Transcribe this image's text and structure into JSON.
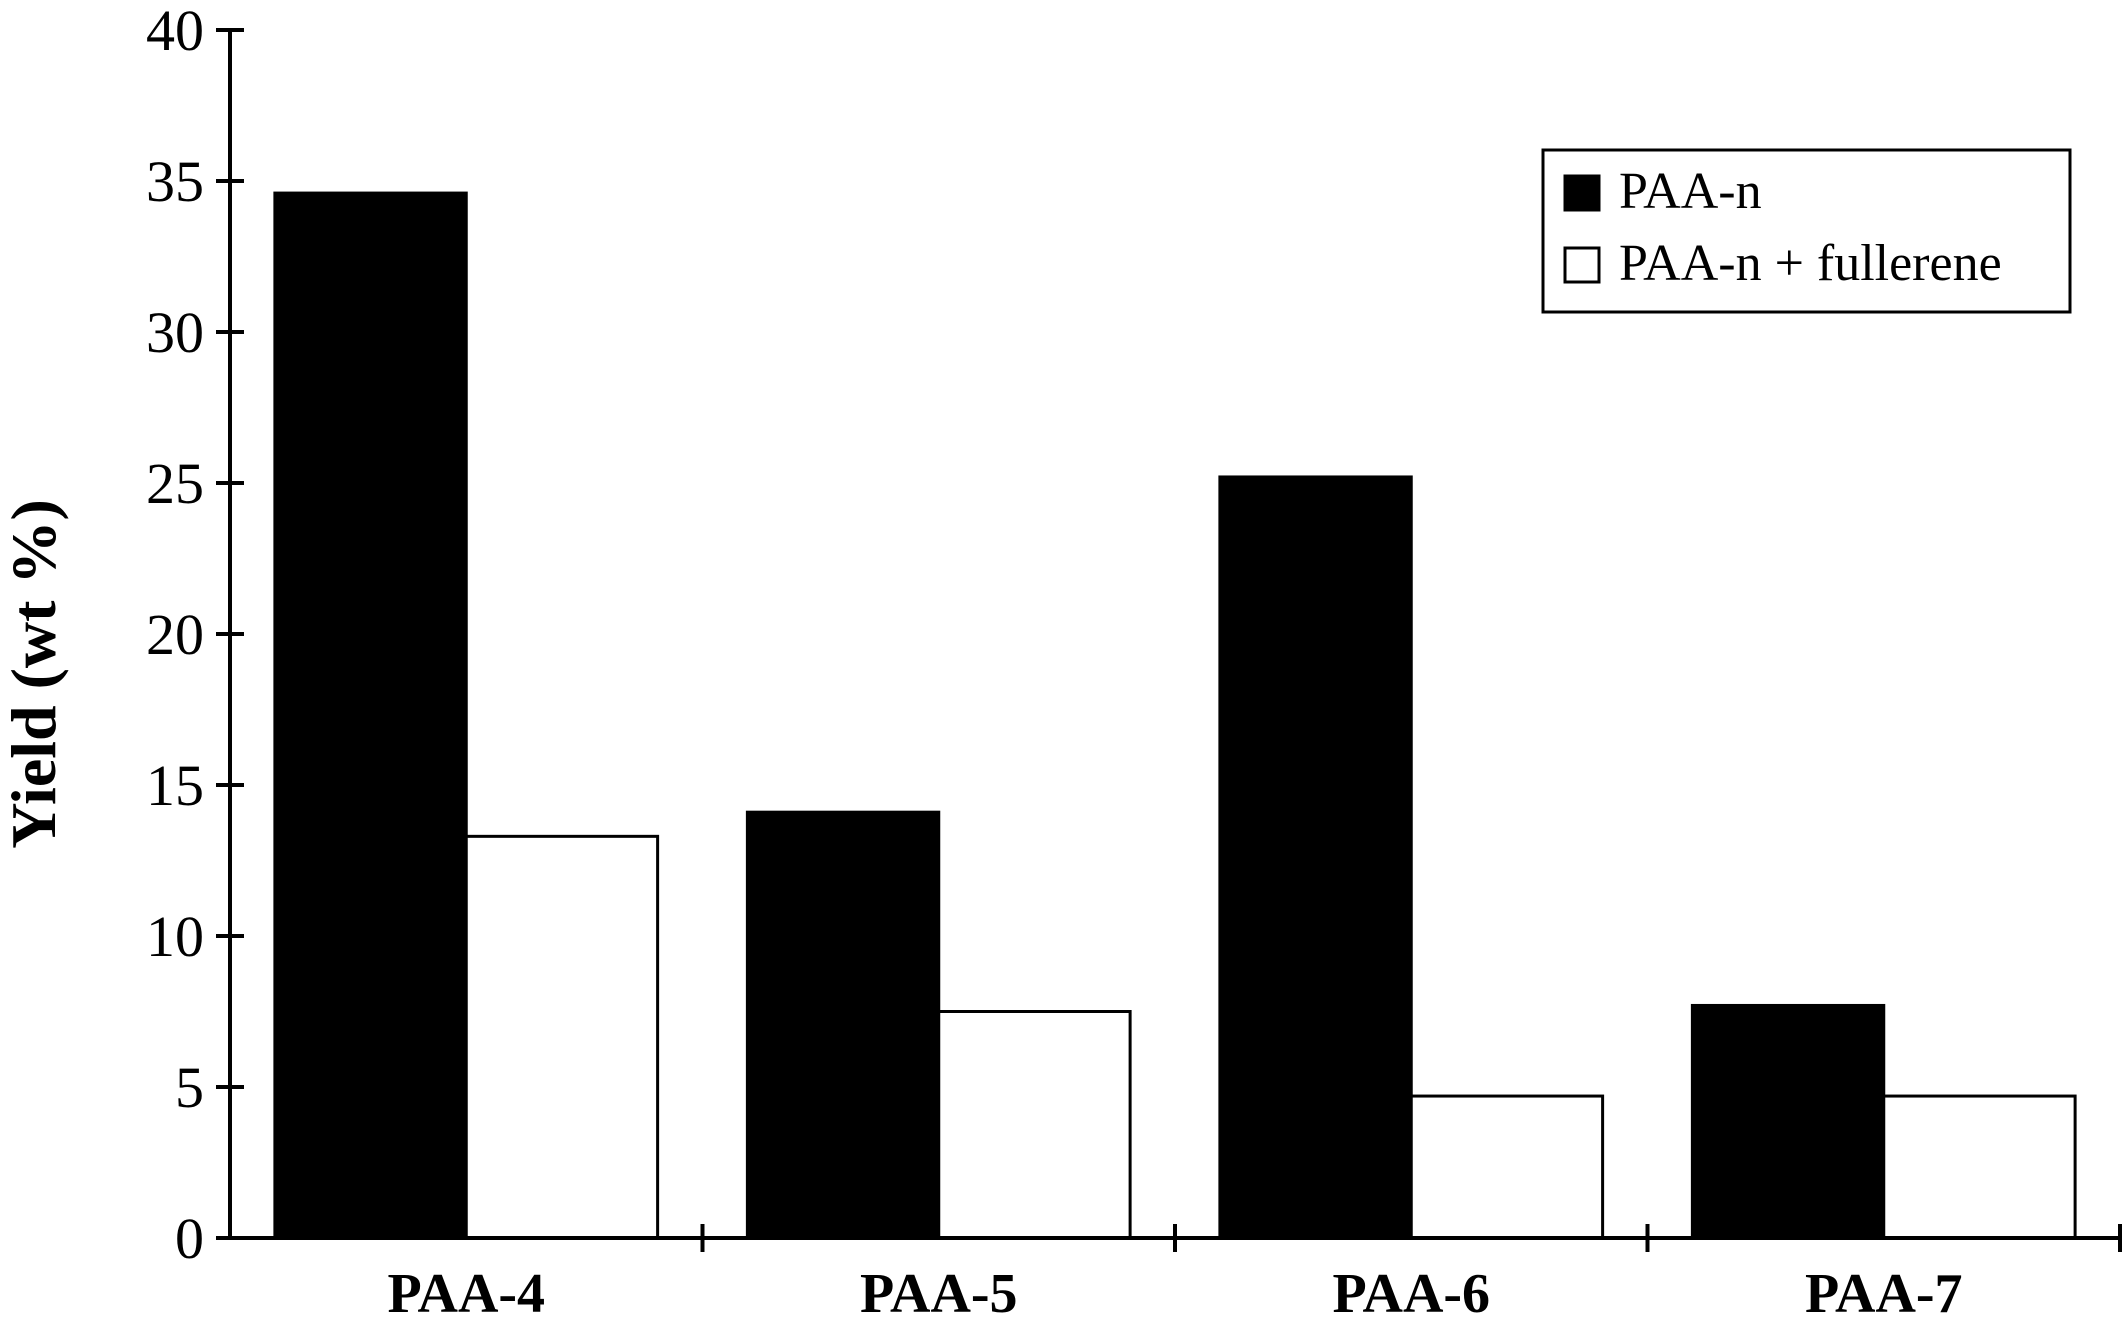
{
  "chart_data": {
    "type": "bar",
    "title": "",
    "xlabel": "",
    "ylabel": "Yield (wt %)",
    "ylim": [
      0,
      40
    ],
    "yticks": [
      0,
      5,
      10,
      15,
      20,
      25,
      30,
      35,
      40
    ],
    "ytick_labels": [
      "0",
      "5",
      "10",
      "15",
      "20",
      "25",
      "30",
      "35",
      "40"
    ],
    "categories": [
      "PAA-4",
      "PAA-5",
      "PAA-6",
      "PAA-7"
    ],
    "series": [
      {
        "name": "PAA-n",
        "values": [
          34.6,
          14.1,
          25.2,
          7.7
        ],
        "color": "#000000"
      },
      {
        "name": "PAA-n + fullerene",
        "values": [
          13.3,
          7.5,
          4.7,
          4.7
        ],
        "color": "#ffffff"
      }
    ],
    "grid": false,
    "legend_position": "top-right"
  }
}
